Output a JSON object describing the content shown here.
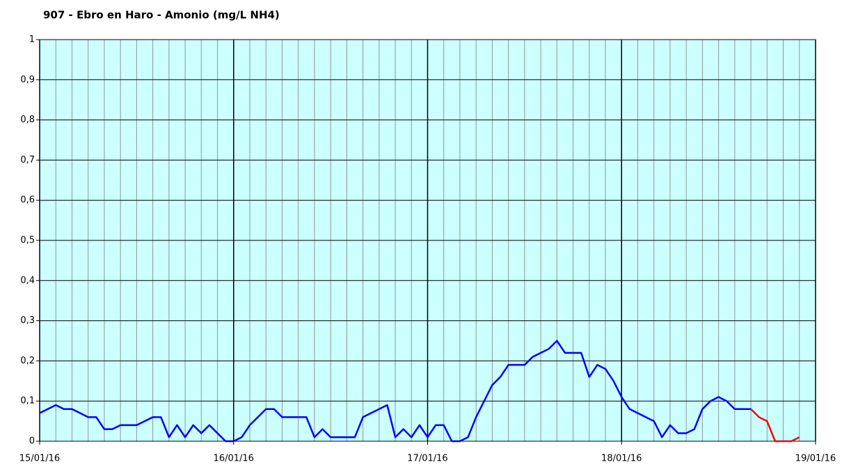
{
  "chart_data": {
    "type": "line",
    "title": "907 - Ebro en Haro - Amonio (mg/L NH4)",
    "x": [
      0,
      1,
      2,
      3,
      4,
      5,
      6,
      7,
      8,
      9,
      10,
      11,
      12,
      13,
      14,
      15,
      16,
      17,
      18,
      19,
      20,
      21,
      22,
      23,
      24,
      25,
      26,
      27,
      28,
      29,
      30,
      31,
      32,
      33,
      34,
      35,
      36,
      37,
      38,
      39,
      40,
      41,
      42,
      43,
      44,
      45,
      46,
      47,
      48,
      49,
      50,
      51,
      52,
      53,
      54,
      55,
      56,
      57,
      58,
      59,
      60,
      61,
      62,
      63,
      64,
      65,
      66,
      67,
      68,
      69,
      70,
      71,
      72,
      73,
      74,
      75,
      76,
      77,
      78,
      79,
      80,
      81,
      82,
      83,
      84,
      85,
      86,
      87,
      88,
      89,
      90,
      91,
      92,
      93,
      94
    ],
    "series": [
      {
        "color": "#0000ff",
        "values": [
          0.07,
          0.08,
          0.09,
          0.08,
          0.08,
          0.07,
          0.06,
          0.06,
          0.03,
          0.03,
          0.04,
          0.04,
          0.04,
          0.05,
          0.06,
          0.06,
          0.01,
          0.04,
          0.01,
          0.04,
          0.02,
          0.04,
          0.02,
          0,
          0,
          0.01,
          0.04,
          0.06,
          0.08,
          0.08,
          0.06,
          0.06,
          0.06,
          0.06,
          0.01,
          0.03,
          0.01,
          0.01,
          0.01,
          0.01,
          0.06,
          0.07,
          0.08,
          0.09,
          0.01,
          0.03,
          0.01,
          0.04,
          0.01,
          0.04,
          0.04,
          0,
          0,
          0.01,
          0.06,
          0.1,
          0.14,
          0.16,
          0.19,
          0.19,
          0.19,
          0.21,
          0.22,
          0.23,
          0.25,
          0.22,
          0.22,
          0.22,
          0.16,
          0.19,
          0.18,
          0.15,
          0.11,
          0.08,
          0.07,
          0.06,
          0.05,
          0.01,
          0.04,
          0.02,
          0.02,
          0.03,
          0.08,
          0.1,
          0.11,
          0.1,
          0.08,
          0.08,
          0.08,
          null,
          null,
          null,
          null,
          null,
          null
        ]
      },
      {
        "color": "#ff0000",
        "values": [
          null,
          null,
          null,
          null,
          null,
          null,
          null,
          null,
          null,
          null,
          null,
          null,
          null,
          null,
          null,
          null,
          null,
          null,
          null,
          null,
          null,
          null,
          null,
          null,
          null,
          null,
          null,
          null,
          null,
          null,
          null,
          null,
          null,
          null,
          null,
          null,
          null,
          null,
          null,
          null,
          null,
          null,
          null,
          null,
          null,
          null,
          null,
          null,
          null,
          null,
          null,
          null,
          null,
          null,
          null,
          null,
          null,
          null,
          null,
          null,
          null,
          null,
          null,
          null,
          null,
          null,
          null,
          null,
          null,
          null,
          null,
          null,
          null,
          null,
          null,
          null,
          null,
          null,
          null,
          null,
          null,
          null,
          null,
          null,
          null,
          null,
          null,
          null,
          0.08,
          0.06,
          0.05,
          0,
          0,
          0,
          0.01
        ]
      }
    ],
    "xlim": [
      0,
      96
    ],
    "xticks": [
      {
        "value": 0,
        "label": "15/01/16"
      },
      {
        "value": 24,
        "label": "16/01/16"
      },
      {
        "value": 48,
        "label": "17/01/16"
      },
      {
        "value": 72,
        "label": "18/01/16"
      },
      {
        "value": 96,
        "label": "19/01/16"
      }
    ],
    "ylim": [
      0,
      1
    ],
    "yticks": [
      0,
      {
        "value": 0.1,
        "label": "0,1"
      },
      {
        "value": 0.2,
        "label": "0,2"
      },
      {
        "value": 0.3,
        "label": "0,3"
      },
      {
        "value": 0.4,
        "label": "0,4"
      },
      {
        "value": 0.5,
        "label": "0,5"
      },
      {
        "value": 0.6,
        "label": "0,6"
      },
      {
        "value": 0.7,
        "label": "0,7"
      },
      {
        "value": 0.8,
        "label": "0,8"
      },
      {
        "value": 0.9,
        "label": "0,9"
      },
      1
    ],
    "grid": true,
    "plot_color": "#ccffff"
  }
}
